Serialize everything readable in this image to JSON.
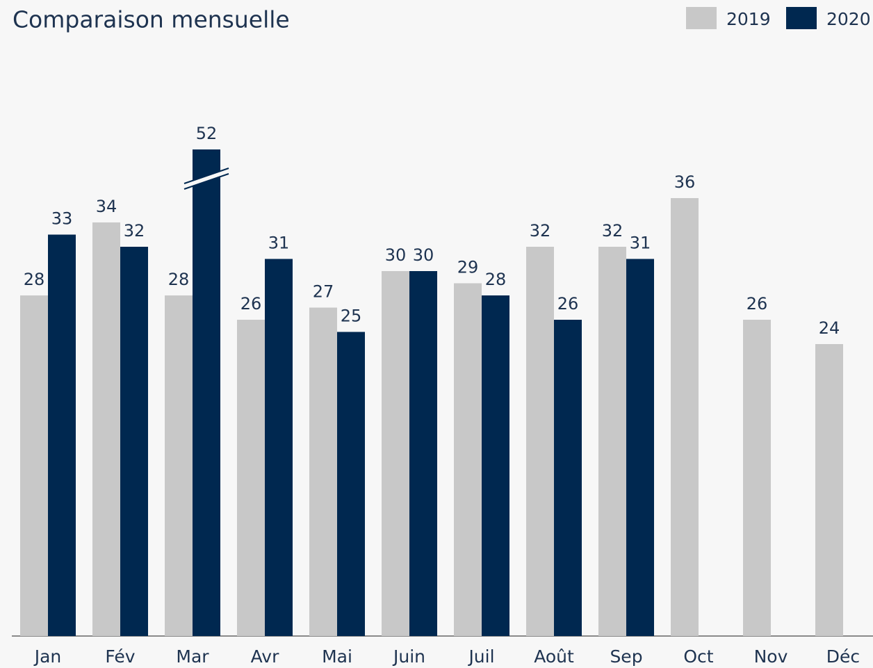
{
  "chart_data": {
    "type": "bar",
    "title": "Comparaison mensuelle",
    "categories": [
      "Jan",
      "Fév",
      "Mar",
      "Avr",
      "Mai",
      "Juin",
      "Juil",
      "Août",
      "Sep",
      "Oct",
      "Nov",
      "Déc"
    ],
    "series": [
      {
        "name": "2019",
        "color": "#c8c8c8",
        "values": [
          28,
          34,
          28,
          26,
          27,
          30,
          29,
          32,
          32,
          36,
          26,
          24
        ]
      },
      {
        "name": "2020",
        "color": "#002850",
        "values": [
          33,
          32,
          52,
          31,
          25,
          30,
          28,
          26,
          31,
          null,
          null,
          null
        ]
      }
    ],
    "ylim": [
      0,
      40
    ],
    "axis_break": true,
    "legend": "top-right"
  }
}
